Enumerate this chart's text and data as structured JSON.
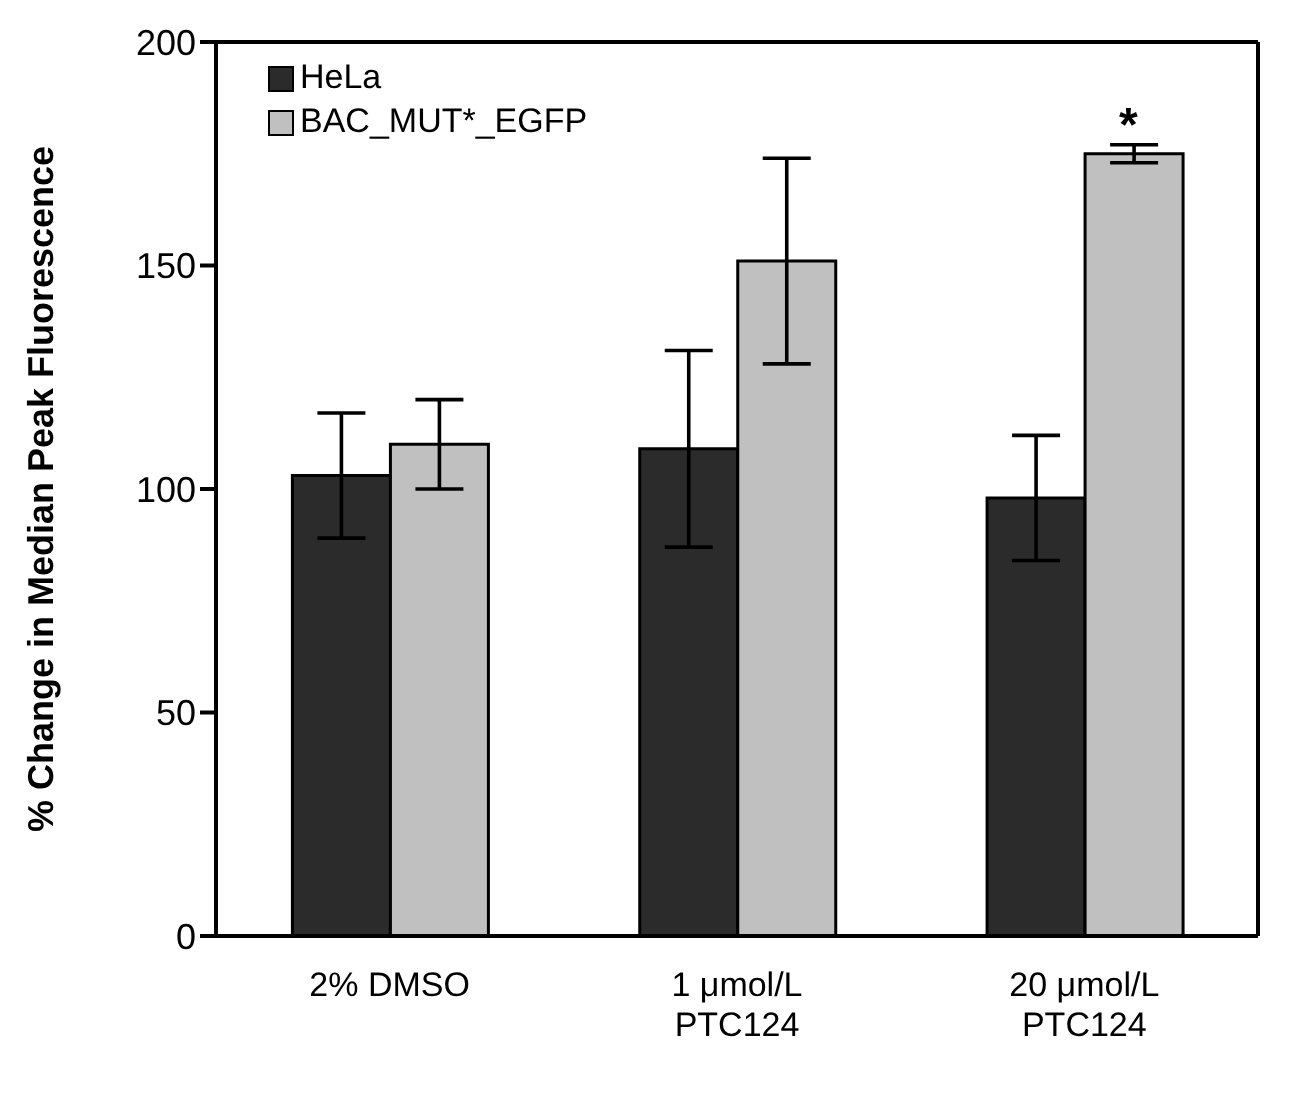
{
  "chart_data": {
    "type": "bar",
    "ylabel": "% Change in Median Peak Fluorescence",
    "categories": [
      "2% DMSO",
      "1 μmol/L PTC124",
      "20 μmol/L PTC124"
    ],
    "series": [
      {
        "name": "HeLa",
        "color": "#2b2b2b",
        "values": [
          103,
          109,
          98
        ],
        "errors": [
          14,
          22,
          14
        ]
      },
      {
        "name": "BAC_MUT*_EGFP",
        "color": "#c0c0c0",
        "values": [
          110,
          151,
          175
        ],
        "errors": [
          10,
          23,
          2
        ]
      }
    ],
    "ylim": [
      0,
      200
    ],
    "yticks": [
      0,
      50,
      100,
      150,
      200
    ],
    "grid": false,
    "legend": "top left",
    "annotations": [
      "*"
    ]
  }
}
